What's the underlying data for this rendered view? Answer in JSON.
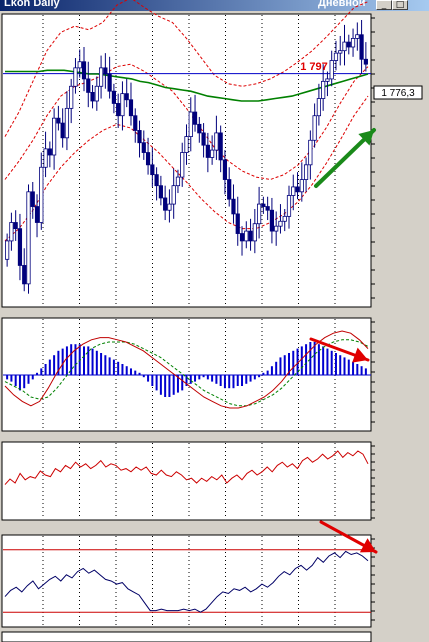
{
  "window": {
    "title_left": "Lkoh Daily",
    "title_right": "Дневной",
    "buttons": {
      "minimize": "_",
      "maximize": "□"
    }
  },
  "colors": {
    "background": "#d4d0c8",
    "panel": "#ffffff",
    "grid": "#000000",
    "candle_body": "#00007b",
    "horizontal_line": "#0000c8",
    "ma_green": "#008000",
    "bollinger": "#dd0000",
    "macd_hist": "#0000d0",
    "macd_line": "#c00000",
    "signal_line": "#008000",
    "osc_red": "#cc0000",
    "osc_navy": "#000066",
    "arrow_green": "#1a8a1a",
    "arrow_red": "#e00000"
  },
  "chart_data": [
    {
      "type": "candlestick",
      "title": "",
      "annotations": {
        "level_label": "1 797",
        "price_box": "1 776,3"
      },
      "close": [
        1640,
        1655,
        1650,
        1620,
        1605,
        1680,
        1668,
        1655,
        1700,
        1715,
        1710,
        1740,
        1736,
        1724,
        1748,
        1766,
        1781,
        1786,
        1772,
        1761,
        1754,
        1766,
        1781,
        1776,
        1762,
        1752,
        1742,
        1760,
        1755,
        1742,
        1730,
        1720,
        1712,
        1702,
        1694,
        1685,
        1675,
        1665,
        1670,
        1685,
        1692,
        1712,
        1725,
        1745,
        1735,
        1728,
        1718,
        1708,
        1714,
        1728,
        1706,
        1690,
        1674,
        1662,
        1646,
        1640,
        1648,
        1640,
        1654,
        1670,
        1668,
        1665,
        1648,
        1652,
        1656,
        1660,
        1677,
        1684,
        1680,
        1690,
        1702,
        1722,
        1742,
        1756,
        1770,
        1772,
        1787,
        1793,
        1795,
        1802,
        1798,
        1805,
        1808,
        1788,
        1784
      ],
      "open": [
        1625,
        1640,
        1655,
        1650,
        1620,
        1605,
        1680,
        1668,
        1655,
        1700,
        1715,
        1710,
        1740,
        1736,
        1724,
        1748,
        1766,
        1781,
        1786,
        1772,
        1761,
        1754,
        1766,
        1781,
        1776,
        1762,
        1752,
        1742,
        1760,
        1755,
        1742,
        1730,
        1720,
        1712,
        1702,
        1694,
        1685,
        1675,
        1665,
        1670,
        1685,
        1692,
        1712,
        1725,
        1745,
        1735,
        1728,
        1718,
        1708,
        1714,
        1728,
        1706,
        1690,
        1674,
        1662,
        1646,
        1640,
        1648,
        1640,
        1654,
        1670,
        1668,
        1665,
        1648,
        1652,
        1656,
        1660,
        1677,
        1684,
        1680,
        1690,
        1702,
        1722,
        1742,
        1756,
        1770,
        1772,
        1787,
        1793,
        1795,
        1802,
        1798,
        1805,
        1808,
        1788
      ],
      "ma": [
        1778,
        1778,
        1778,
        1778,
        1778,
        1779,
        1779,
        1779,
        1778,
        1777,
        1776,
        1776,
        1775,
        1774,
        1773,
        1772,
        1770,
        1769,
        1767,
        1765,
        1764,
        1763,
        1762,
        1760,
        1758,
        1757,
        1756,
        1755,
        1754,
        1754,
        1754,
        1755,
        1756,
        1757,
        1758,
        1760,
        1762,
        1764,
        1766,
        1768,
        1770,
        1772,
        1774,
        1776
      ],
      "bollinger_upper": [
        1725,
        1745,
        1770,
        1795,
        1810,
        1815,
        1812,
        1818,
        1832,
        1838,
        1830,
        1823,
        1818,
        1805,
        1790,
        1775,
        1768,
        1766,
        1768,
        1772,
        1778,
        1786,
        1795,
        1806,
        1818,
        1830,
        1835
      ],
      "bollinger_middle": [
        1690,
        1705,
        1722,
        1742,
        1758,
        1766,
        1770,
        1775,
        1782,
        1784,
        1778,
        1770,
        1762,
        1748,
        1732,
        1716,
        1705,
        1697,
        1692,
        1690,
        1694,
        1702,
        1715,
        1732,
        1752,
        1770,
        1782
      ],
      "bollinger_lower": [
        1640,
        1650,
        1665,
        1685,
        1700,
        1712,
        1722,
        1730,
        1735,
        1732,
        1722,
        1712,
        1700,
        1688,
        1675,
        1664,
        1655,
        1650,
        1650,
        1655,
        1662,
        1672,
        1686,
        1703,
        1722,
        1742,
        1758
      ]
    },
    {
      "type": "bar",
      "title": "",
      "histogram": [
        -2,
        -3,
        -5,
        -7,
        -6,
        -4,
        -2,
        1,
        3,
        5,
        7,
        9,
        11,
        12,
        13,
        14,
        14,
        14,
        13,
        13,
        12,
        11,
        10,
        9,
        8,
        7,
        6,
        5,
        4,
        3,
        2,
        1,
        -1,
        -3,
        -5,
        -7,
        -9,
        -10,
        -10,
        -9,
        -8,
        -7,
        -5,
        -4,
        -3,
        -2,
        -1,
        -2,
        -3,
        -4,
        -5,
        -6,
        -6,
        -6,
        -5,
        -5,
        -4,
        -3,
        -2,
        -1,
        1,
        2,
        4,
        6,
        8,
        9,
        10,
        11,
        12,
        13,
        14,
        15,
        15,
        14,
        13,
        12,
        11,
        10,
        9,
        8,
        7,
        6,
        5,
        4,
        3
      ],
      "macd_line": [
        -5,
        -9,
        -12,
        -14,
        -12,
        -6,
        1,
        7,
        11,
        14,
        16,
        17,
        17,
        16,
        15,
        13,
        11,
        8,
        5,
        2,
        -1,
        -4,
        -7,
        -10,
        -12,
        -14,
        -15,
        -15,
        -14,
        -12,
        -10,
        -7,
        -3,
        2,
        6,
        10,
        14,
        17,
        19,
        20,
        19,
        16,
        12
      ],
      "signal_line": [
        -3,
        -5,
        -7,
        -10,
        -11,
        -10,
        -6,
        -1,
        4,
        8,
        12,
        14,
        15,
        15,
        15,
        14,
        12,
        10,
        8,
        5,
        2,
        -1,
        -4,
        -7,
        -9,
        -11,
        -13,
        -14,
        -14,
        -13,
        -11,
        -9,
        -6,
        -2,
        2,
        6,
        10,
        13,
        15,
        16,
        16,
        15,
        13
      ]
    },
    {
      "type": "line",
      "title": "",
      "values": [
        38,
        45,
        40,
        52,
        44,
        48,
        46,
        55,
        50,
        48,
        58,
        54,
        62,
        58,
        66,
        60,
        64,
        58,
        62,
        68,
        60,
        64,
        62,
        56,
        58,
        54,
        60,
        56,
        60,
        52,
        50,
        56,
        50,
        48,
        54,
        50,
        44,
        46,
        40,
        46,
        42,
        48,
        44,
        50,
        40,
        46,
        50,
        44,
        52,
        56,
        50,
        54,
        60,
        54,
        62,
        66,
        60,
        64,
        58,
        68,
        72,
        66,
        70,
        76,
        70,
        74,
        80,
        72,
        78,
        74,
        80,
        76,
        64
      ]
    },
    {
      "type": "line",
      "title": "",
      "values": [
        30,
        38,
        42,
        36,
        44,
        50,
        40,
        46,
        52,
        56,
        50,
        58,
        54,
        62,
        66,
        60,
        64,
        58,
        52,
        50,
        46,
        48,
        40,
        36,
        32,
        22,
        12,
        12,
        14,
        12,
        12,
        12,
        14,
        12,
        14,
        10,
        14,
        22,
        30,
        36,
        34,
        40,
        38,
        42,
        36,
        40,
        46,
        42,
        48,
        56,
        62,
        58,
        66,
        70,
        64,
        70,
        80,
        74,
        82,
        86,
        80,
        88,
        84,
        86,
        82,
        76
      ],
      "upper_level": 90,
      "lower_level": 10
    }
  ]
}
